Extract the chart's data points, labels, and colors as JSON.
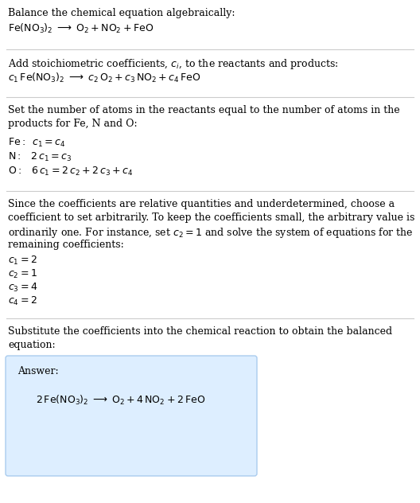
{
  "bg_color": "#ffffff",
  "text_color": "#000000",
  "gray_text": "#555555",
  "section1_title": "Balance the chemical equation algebraically:",
  "section1_eq": "$\\mathrm{Fe(NO_3)_2}\\;\\longrightarrow\\;\\mathrm{O_2 + NO_2 + FeO}$",
  "section2_title": "Add stoichiometric coefficients, $c_i$, to the reactants and products:",
  "section2_eq": "$c_1\\,\\mathrm{Fe(NO_3)_2}\\;\\longrightarrow\\;c_2\\,\\mathrm{O_2} + c_3\\,\\mathrm{NO_2} + c_4\\,\\mathrm{FeO}$",
  "section3_title_l1": "Set the number of atoms in the reactants equal to the number of atoms in the",
  "section3_title_l2": "products for Fe, N and O:",
  "section3_fe": "$\\mathrm{Fe:}\\;\\;c_1 = c_4$",
  "section3_n": "$\\mathrm{N:}\\;\\;\\;2\\,c_1 = c_3$",
  "section3_o": "$\\mathrm{O:}\\;\\;\\;6\\,c_1 = 2\\,c_2 + 2\\,c_3 + c_4$",
  "section4_l1": "Since the coefficients are relative quantities and underdetermined, choose a",
  "section4_l2": "coefficient to set arbitrarily. To keep the coefficients small, the arbitrary value is",
  "section4_l3": "ordinarily one. For instance, set $c_2 = 1$ and solve the system of equations for the",
  "section4_l4": "remaining coefficients:",
  "section4_c1": "$c_1 = 2$",
  "section4_c2": "$c_2 = 1$",
  "section4_c3": "$c_3 = 4$",
  "section4_c4": "$c_4 = 2$",
  "section5_l1": "Substitute the coefficients into the chemical reaction to obtain the balanced",
  "section5_l2": "equation:",
  "answer_label": "Answer:",
  "answer_eq": "$2\\,\\mathrm{Fe(NO_3)_2}\\;\\longrightarrow\\;\\mathrm{O_2} + 4\\,\\mathrm{NO_2} + 2\\,\\mathrm{FeO}$",
  "answer_box_color": "#ddeeff",
  "answer_box_edge": "#aaccee",
  "line_color": "#cccccc",
  "fs": 9.0,
  "fig_w": 5.28,
  "fig_h": 6.32,
  "dpi": 100
}
